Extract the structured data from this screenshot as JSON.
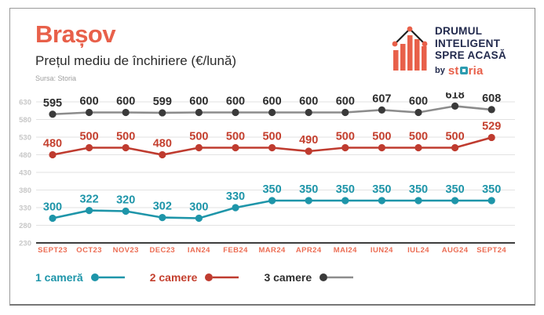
{
  "header": {
    "title": "Brașov",
    "subtitle": "Prețul mediu de închiriere (€/lună)",
    "source": "Sursa: Storia"
  },
  "logo": {
    "line1": "DRUMUL",
    "line2": "INTELIGENT",
    "line3": "SPRE ACASĂ",
    "by": "by",
    "brand_pre": "st",
    "brand_post": "ria"
  },
  "colors": {
    "accent_coral": "#E8604A",
    "xlabel_coral": "#EC6E55",
    "teal": "#1E95A9",
    "brick": "#BF3B2F",
    "gray_line": "#8C8C8C",
    "dark_dot": "#3A3A3A",
    "dark_text": "#2E2E2E",
    "navy": "#222A4D",
    "tick_gray": "#C7C7C7",
    "grid_gray": "#E2E2E2",
    "axis_dark": "#3D3D3D"
  },
  "chart_data": {
    "type": "line",
    "title": "Prețul mediu de închiriere (€/lună)",
    "xlabel": "",
    "ylabel": "",
    "categories": [
      "SEPT23",
      "OCT23",
      "NOV23",
      "DEC23",
      "IAN24",
      "FEB24",
      "MAR24",
      "APR24",
      "MAI24",
      "IUN24",
      "IUL24",
      "AUG24",
      "SEPT24"
    ],
    "series": [
      {
        "name": "1 cameră",
        "color": "#1E95A9",
        "dot_color": "#1E95A9",
        "label_color": "#1E95A9",
        "values": [
          300,
          322,
          320,
          302,
          300,
          330,
          350,
          350,
          350,
          350,
          350,
          350,
          350
        ]
      },
      {
        "name": "2 camere",
        "color": "#BF3B2F",
        "dot_color": "#BF3B2F",
        "label_color": "#C4402F",
        "values": [
          480,
          500,
          500,
          480,
          500,
          500,
          500,
          490,
          500,
          500,
          500,
          500,
          529
        ]
      },
      {
        "name": "3 camere",
        "color": "#8C8C8C",
        "dot_color": "#3A3A3A",
        "label_color": "#2E2E2E",
        "values": [
          595,
          600,
          600,
          599,
          600,
          600,
          600,
          600,
          600,
          607,
          600,
          618,
          608
        ]
      }
    ],
    "yticks": [
      630,
      580,
      530,
      480,
      430,
      380,
      330,
      280,
      230
    ],
    "ylim": [
      230,
      630
    ],
    "grid": true,
    "value_labels": true,
    "legend_position": "bottom"
  }
}
